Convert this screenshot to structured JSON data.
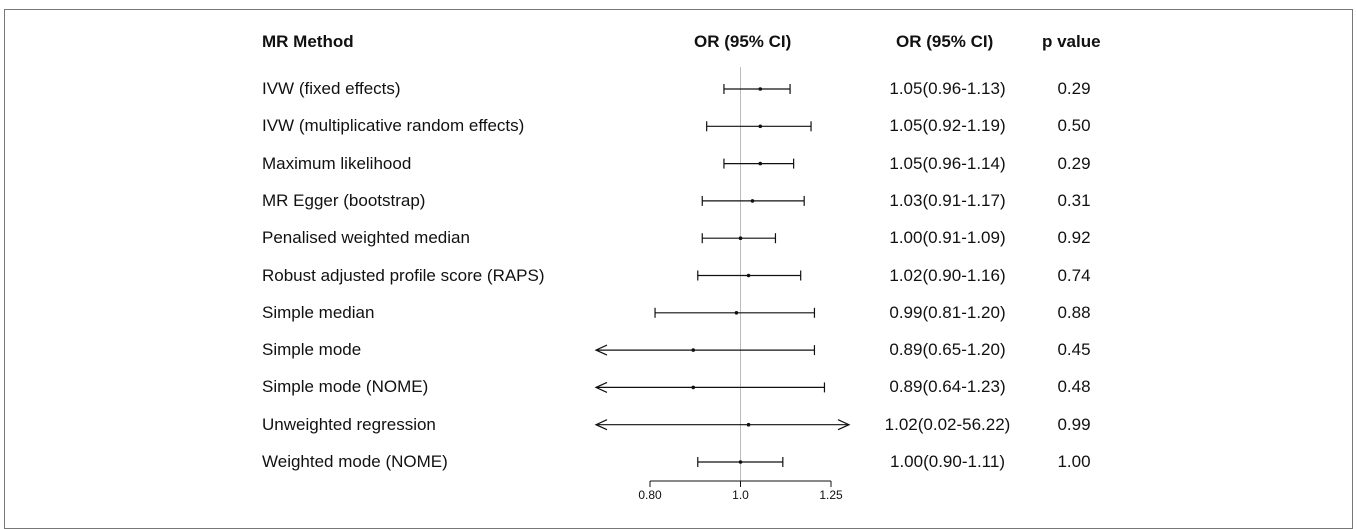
{
  "headers": {
    "method": "MR Method",
    "or_plot": "OR (95% CI)",
    "or_text": "OR (95% CI)",
    "p_value": "p value"
  },
  "chart_data": {
    "type": "forest",
    "xlim": [
      0.8,
      1.25
    ],
    "reference_line": 1.0,
    "xticks": [
      {
        "value": 0.8,
        "label": "0.80"
      },
      {
        "value": 1.0,
        "label": "1.0"
      },
      {
        "value": 1.25,
        "label": "1.25"
      }
    ],
    "rows": [
      {
        "method": "IVW (fixed effects)",
        "or": 1.05,
        "lo": 0.96,
        "hi": 1.13,
        "or_text": "1.05(0.96-1.13)",
        "p": "0.29"
      },
      {
        "method": "IVW (multiplicative random effects)",
        "or": 1.05,
        "lo": 0.92,
        "hi": 1.19,
        "or_text": "1.05(0.92-1.19)",
        "p": "0.50"
      },
      {
        "method": "Maximum likelihood",
        "or": 1.05,
        "lo": 0.96,
        "hi": 1.14,
        "or_text": "1.05(0.96-1.14)",
        "p": "0.29"
      },
      {
        "method": "MR Egger (bootstrap)",
        "or": 1.03,
        "lo": 0.91,
        "hi": 1.17,
        "or_text": "1.03(0.91-1.17)",
        "p": "0.31"
      },
      {
        "method": "Penalised weighted median",
        "or": 1.0,
        "lo": 0.91,
        "hi": 1.09,
        "or_text": "1.00(0.91-1.09)",
        "p": "0.92"
      },
      {
        "method": "Robust adjusted profile score (RAPS)",
        "or": 1.02,
        "lo": 0.9,
        "hi": 1.16,
        "or_text": "1.02(0.90-1.16)",
        "p": "0.74"
      },
      {
        "method": "Simple median",
        "or": 0.99,
        "lo": 0.81,
        "hi": 1.2,
        "or_text": "0.99(0.81-1.20)",
        "p": "0.88"
      },
      {
        "method": "Simple mode",
        "or": 0.89,
        "lo": 0.65,
        "hi": 1.2,
        "or_text": "0.89(0.65-1.20)",
        "p": "0.45"
      },
      {
        "method": "Simple mode (NOME)",
        "or": 0.89,
        "lo": 0.64,
        "hi": 1.23,
        "or_text": "0.89(0.64-1.23)",
        "p": "0.48"
      },
      {
        "method": "Unweighted regression",
        "or": 1.02,
        "lo": 0.02,
        "hi": 56.22,
        "or_text": "1.02(0.02-56.22)",
        "p": "0.99"
      },
      {
        "method": "Weighted mode (NOME)",
        "or": 1.0,
        "lo": 0.9,
        "hi": 1.11,
        "or_text": "1.00(0.90-1.11)",
        "p": "1.00"
      }
    ]
  }
}
